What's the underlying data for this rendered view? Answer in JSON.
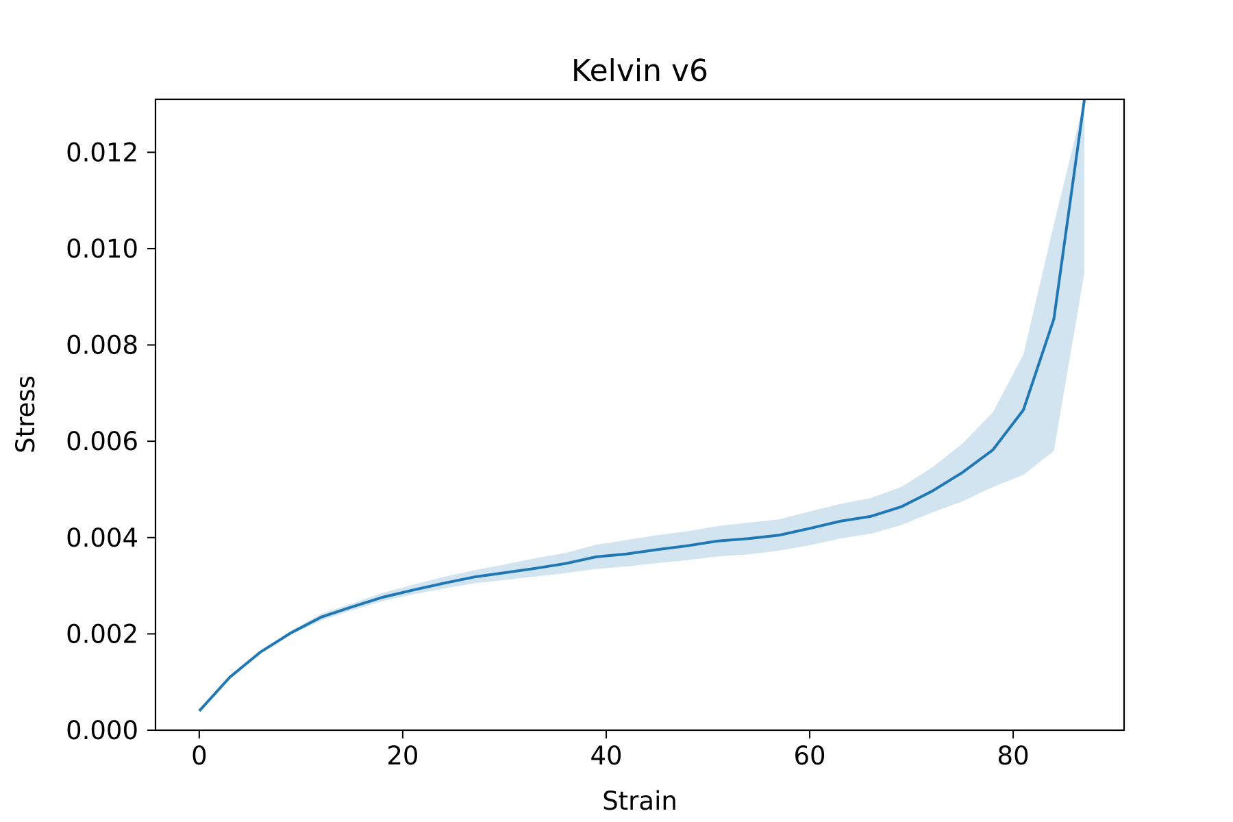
{
  "chart_data": {
    "type": "line",
    "title": "Kelvin v6",
    "xlabel": "Strain",
    "ylabel": "Stress",
    "xlim": [
      -4.3,
      90.9
    ],
    "ylim": [
      0.0,
      0.0131
    ],
    "xticks": [
      0,
      20,
      40,
      60,
      80
    ],
    "xtick_labels": [
      "0",
      "20",
      "40",
      "60",
      "80"
    ],
    "yticks": [
      0.0,
      0.002,
      0.004,
      0.006,
      0.008,
      0.01,
      0.012
    ],
    "ytick_labels": [
      "0.000",
      "0.002",
      "0.004",
      "0.006",
      "0.008",
      "0.010",
      "0.012"
    ],
    "grid": false,
    "line_color": "#1f77b4",
    "band_color": "#1f77b4",
    "series": [
      {
        "x": [
          0,
          3,
          6,
          9,
          12,
          15,
          18,
          21,
          24,
          27,
          30,
          33,
          36,
          39,
          42,
          45,
          48,
          51,
          54,
          57,
          60,
          63,
          66,
          69,
          72,
          75,
          78,
          81,
          84,
          87
        ],
        "values": [
          0.0004,
          0.0011,
          0.00162,
          0.00202,
          0.00235,
          0.00256,
          0.00276,
          0.00291,
          0.00305,
          0.00318,
          0.00327,
          0.00336,
          0.00346,
          0.0036,
          0.00366,
          0.00375,
          0.00383,
          0.00393,
          0.00398,
          0.00405,
          0.00419,
          0.00434,
          0.00444,
          0.00464,
          0.00496,
          0.00535,
          0.00582,
          0.00665,
          0.00854,
          0.0131
        ],
        "band_lower": [
          0.0004,
          0.0011,
          0.0016,
          0.00198,
          0.00228,
          0.00249,
          0.00268,
          0.00282,
          0.00294,
          0.00305,
          0.00312,
          0.00319,
          0.00326,
          0.00335,
          0.0034,
          0.00347,
          0.00353,
          0.00361,
          0.00365,
          0.00373,
          0.00384,
          0.00398,
          0.00408,
          0.00426,
          0.00452,
          0.00475,
          0.00505,
          0.0053,
          0.0058,
          0.0095
        ],
        "band_upper": [
          0.0004,
          0.0011,
          0.00164,
          0.00206,
          0.00242,
          0.00263,
          0.00285,
          0.00302,
          0.00318,
          0.00332,
          0.00344,
          0.00357,
          0.00368,
          0.00385,
          0.00395,
          0.00405,
          0.00413,
          0.00424,
          0.00431,
          0.00438,
          0.00454,
          0.0047,
          0.00482,
          0.00505,
          0.00545,
          0.00595,
          0.0066,
          0.0078,
          0.0105,
          0.0131
        ]
      }
    ]
  }
}
